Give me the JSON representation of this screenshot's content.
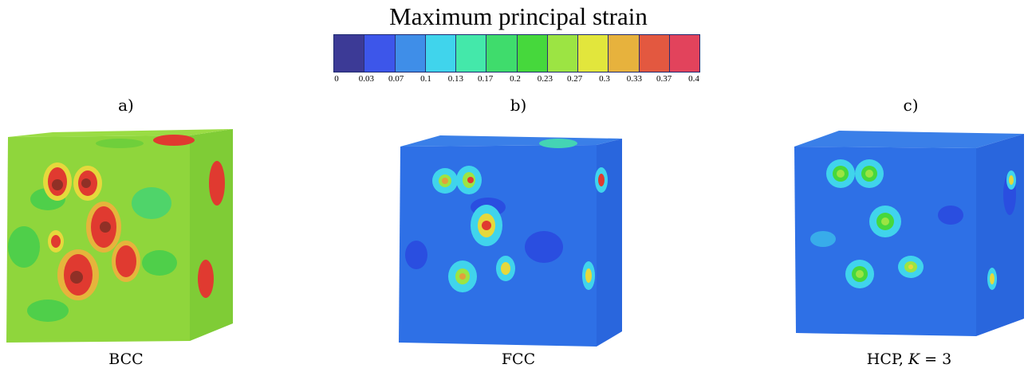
{
  "title": "Maximum principal strain",
  "legend": {
    "colors": [
      "#3c3a96",
      "#3d56ea",
      "#3f8ee8",
      "#40d4ec",
      "#44e8aa",
      "#3fdc6c",
      "#46d83c",
      "#9ce443",
      "#e2e63c",
      "#e7b23d",
      "#e35840",
      "#e2435c"
    ],
    "ticks": [
      "0",
      "0.03",
      "0.07",
      "0.1",
      "0.13",
      "0.17",
      "0.2",
      "0.23",
      "0.27",
      "0.3",
      "0.33",
      "0.37",
      "0.4"
    ]
  },
  "panels": [
    {
      "letter": "a)",
      "caption": "BCC"
    },
    {
      "letter": "b)",
      "caption": "FCC"
    },
    {
      "letter": "c)",
      "caption_main": "HCP, ",
      "caption_math": "K",
      "caption_tail": " = 3"
    }
  ]
}
